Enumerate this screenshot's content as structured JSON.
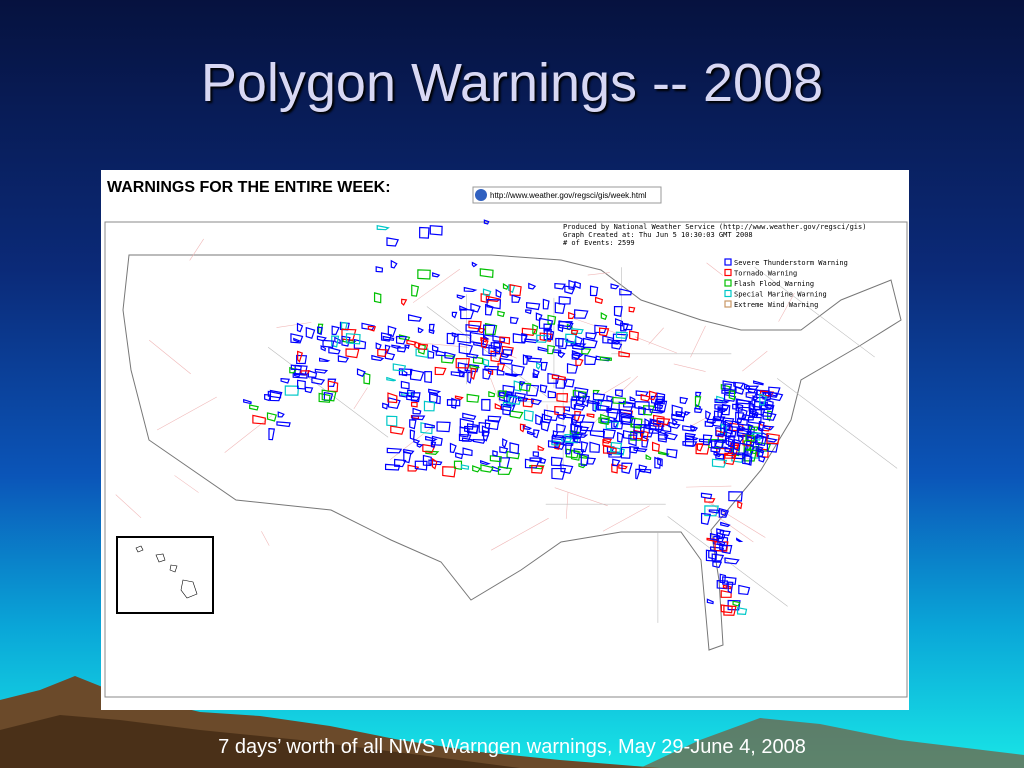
{
  "title": "Polygon Warnings -- 2008",
  "panel": {
    "heading": "WARNINGS FOR THE ENTIRE WEEK:",
    "url": "http://www.weather.gov/regsci/gis/week.html",
    "info": [
      "Produced by National Weather Service (http://www.weather.gov/regsci/gis)",
      "Graph Created at: Thu Jun  5 10:30:03 GMT 2008",
      "# of Events: 2599"
    ],
    "legend": [
      {
        "label": "Severe Thunderstorm Warning",
        "color": "#0000ff"
      },
      {
        "label": "Tornado Warning",
        "color": "#ff0000"
      },
      {
        "label": "Flash Flood Warning",
        "color": "#00c000"
      },
      {
        "label": "Special Marine Warning",
        "color": "#00c8c8"
      },
      {
        "label": "Extreme Wind Warning",
        "color": "#c89664"
      }
    ]
  },
  "caption": "7 days’ worth of all NWS Warngen warnings, May 29-June 4, 2008"
}
